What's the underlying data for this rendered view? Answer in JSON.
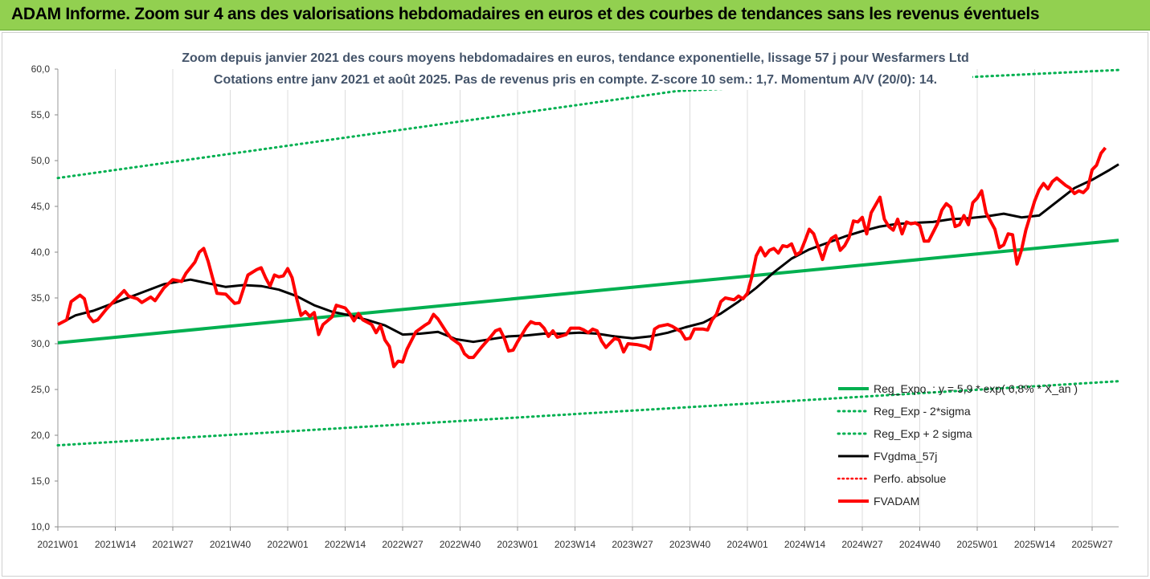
{
  "banner": {
    "title": "ADAM Informe. Zoom sur 4 ans des valorisations hebdomadaires en euros et des courbes de tendances sans les revenus éventuels"
  },
  "colors": {
    "banner_bg": "#92d050",
    "trend": "#00b050",
    "sigma": "#00b050",
    "smooth": "#000000",
    "price": "#ff0000",
    "perf": "#ff0000",
    "title": "#44546a"
  },
  "chart_data": {
    "type": "line",
    "title": "Zoom depuis janvier 2021 des cours moyens hebdomadaires en euros, tendance exponentielle, lissage 57 j pour Wesfarmers Ltd",
    "subtitle": "Cotations entre janv 2021 et août 2025. Pas de revenus pris en compte. Z-score 10 sem.: 1,7. Momentum A/V (20/0): 14.",
    "xlabel": "",
    "ylabel": "",
    "ylim": [
      10,
      60
    ],
    "yticks": [
      "10,0",
      "15,0",
      "20,0",
      "25,0",
      "30,0",
      "35,0",
      "40,0",
      "45,0",
      "50,0",
      "55,0",
      "60,0"
    ],
    "n_weeks": 241,
    "x_ticks": [
      {
        "i": 0,
        "label": "2021W01"
      },
      {
        "i": 13,
        "label": "2021W14"
      },
      {
        "i": 26,
        "label": "2021W27"
      },
      {
        "i": 39,
        "label": "2021W40"
      },
      {
        "i": 52,
        "label": "2022W01"
      },
      {
        "i": 65,
        "label": "2022W14"
      },
      {
        "i": 78,
        "label": "2022W27"
      },
      {
        "i": 91,
        "label": "2022W40"
      },
      {
        "i": 104,
        "label": "2023W01"
      },
      {
        "i": 117,
        "label": "2023W14"
      },
      {
        "i": 130,
        "label": "2023W27"
      },
      {
        "i": 143,
        "label": "2023W40"
      },
      {
        "i": 156,
        "label": "2024W01"
      },
      {
        "i": 169,
        "label": "2024W14"
      },
      {
        "i": 182,
        "label": "2024W27"
      },
      {
        "i": 195,
        "label": "2024W40"
      },
      {
        "i": 208,
        "label": "2025W01"
      },
      {
        "i": 221,
        "label": "2025W14"
      },
      {
        "i": 234,
        "label": "2025W27"
      }
    ],
    "grid": "vertical",
    "legend_position": "bottom-right",
    "series": [
      {
        "name": "Reg_Expo. : y = 5,9 * exp( 6,8% * X_an )",
        "style": "trend",
        "points": [
          [
            0,
            30.1
          ],
          [
            240,
            41.3
          ]
        ]
      },
      {
        "name": "Reg_Exp - 2*sigma",
        "style": "sigma",
        "points": [
          [
            0,
            18.9
          ],
          [
            240,
            25.9
          ]
        ]
      },
      {
        "name": "Reg_Exp + 2 sigma",
        "style": "sigma",
        "points": [
          [
            0,
            48.1
          ],
          [
            140,
            57.6
          ],
          [
            240,
            59.9
          ]
        ]
      },
      {
        "name": "FVgdma_57j",
        "style": "smooth",
        "points": [
          [
            0,
            32.1
          ],
          [
            4,
            33.1
          ],
          [
            8,
            33.6
          ],
          [
            13,
            34.5
          ],
          [
            18,
            35.4
          ],
          [
            24,
            36.5
          ],
          [
            30,
            37.0
          ],
          [
            34,
            36.6
          ],
          [
            38,
            36.2
          ],
          [
            42,
            36.4
          ],
          [
            46,
            36.3
          ],
          [
            50,
            35.9
          ],
          [
            54,
            35.2
          ],
          [
            58,
            34.2
          ],
          [
            62,
            33.5
          ],
          [
            66,
            33.1
          ],
          [
            70,
            32.6
          ],
          [
            74,
            32.0
          ],
          [
            78,
            31.0
          ],
          [
            82,
            31.1
          ],
          [
            86,
            31.3
          ],
          [
            90,
            30.5
          ],
          [
            94,
            30.2
          ],
          [
            98,
            30.5
          ],
          [
            102,
            30.8
          ],
          [
            106,
            30.9
          ],
          [
            110,
            31.1
          ],
          [
            114,
            31.1
          ],
          [
            118,
            31.2
          ],
          [
            122,
            31.1
          ],
          [
            126,
            30.8
          ],
          [
            130,
            30.6
          ],
          [
            134,
            30.8
          ],
          [
            138,
            31.2
          ],
          [
            142,
            31.8
          ],
          [
            146,
            32.3
          ],
          [
            150,
            33.3
          ],
          [
            154,
            34.6
          ],
          [
            158,
            36.1
          ],
          [
            162,
            37.8
          ],
          [
            166,
            39.3
          ],
          [
            170,
            40.3
          ],
          [
            174,
            41.0
          ],
          [
            178,
            41.7
          ],
          [
            182,
            42.3
          ],
          [
            186,
            42.8
          ],
          [
            190,
            43.1
          ],
          [
            194,
            43.2
          ],
          [
            198,
            43.3
          ],
          [
            202,
            43.6
          ],
          [
            206,
            43.7
          ],
          [
            210,
            43.9
          ],
          [
            214,
            44.2
          ],
          [
            218,
            43.8
          ],
          [
            222,
            44.0
          ],
          [
            226,
            45.5
          ],
          [
            230,
            47.0
          ],
          [
            234,
            47.9
          ],
          [
            238,
            49.0
          ],
          [
            240,
            49.6
          ]
        ]
      },
      {
        "name": "Perfo. absolue",
        "style": "perf",
        "points": []
      },
      {
        "name": "FVADAM",
        "style": "price",
        "points": [
          [
            0,
            32.1
          ],
          [
            2,
            32.6
          ],
          [
            3,
            34.6
          ],
          [
            5,
            35.3
          ],
          [
            6,
            34.9
          ],
          [
            7,
            33.0
          ],
          [
            8,
            32.4
          ],
          [
            9,
            32.6
          ],
          [
            11,
            33.8
          ],
          [
            13,
            34.8
          ],
          [
            15,
            35.8
          ],
          [
            16,
            35.2
          ],
          [
            18,
            34.9
          ],
          [
            19,
            34.5
          ],
          [
            21,
            35.1
          ],
          [
            22,
            34.7
          ],
          [
            24,
            36.1
          ],
          [
            26,
            37.0
          ],
          [
            28,
            36.8
          ],
          [
            29,
            37.7
          ],
          [
            31,
            38.9
          ],
          [
            32,
            40.0
          ],
          [
            33,
            40.4
          ],
          [
            34,
            39.0
          ],
          [
            35,
            37.2
          ],
          [
            36,
            35.5
          ],
          [
            38,
            35.4
          ],
          [
            40,
            34.4
          ],
          [
            41,
            34.5
          ],
          [
            43,
            37.5
          ],
          [
            45,
            38.1
          ],
          [
            46,
            38.3
          ],
          [
            47,
            37.2
          ],
          [
            48,
            36.3
          ],
          [
            49,
            37.5
          ],
          [
            50,
            37.3
          ],
          [
            51,
            37.4
          ],
          [
            52,
            38.2
          ],
          [
            53,
            37.2
          ],
          [
            54,
            35.0
          ],
          [
            55,
            33.1
          ],
          [
            56,
            33.5
          ],
          [
            57,
            33.0
          ],
          [
            58,
            33.4
          ],
          [
            59,
            31.0
          ],
          [
            60,
            32.1
          ],
          [
            62,
            32.9
          ],
          [
            63,
            34.2
          ],
          [
            65,
            33.9
          ],
          [
            66,
            33.3
          ],
          [
            67,
            32.5
          ],
          [
            68,
            33.3
          ],
          [
            69,
            32.6
          ],
          [
            71,
            32.1
          ],
          [
            72,
            31.2
          ],
          [
            73,
            32.0
          ],
          [
            74,
            30.4
          ],
          [
            75,
            29.7
          ],
          [
            76,
            27.5
          ],
          [
            77,
            28.1
          ],
          [
            78,
            28.0
          ],
          [
            79,
            29.4
          ],
          [
            81,
            31.3
          ],
          [
            83,
            32.0
          ],
          [
            84,
            32.3
          ],
          [
            85,
            33.2
          ],
          [
            86,
            32.7
          ],
          [
            88,
            31.2
          ],
          [
            89,
            30.6
          ],
          [
            91,
            29.9
          ],
          [
            92,
            28.9
          ],
          [
            93,
            28.5
          ],
          [
            94,
            28.5
          ],
          [
            96,
            29.7
          ],
          [
            98,
            30.8
          ],
          [
            99,
            31.4
          ],
          [
            100,
            31.6
          ],
          [
            101,
            30.6
          ],
          [
            102,
            29.2
          ],
          [
            103,
            29.3
          ],
          [
            104,
            30.2
          ],
          [
            106,
            31.8
          ],
          [
            107,
            32.4
          ],
          [
            108,
            32.2
          ],
          [
            109,
            32.2
          ],
          [
            110,
            31.7
          ],
          [
            111,
            30.8
          ],
          [
            112,
            31.4
          ],
          [
            113,
            30.7
          ],
          [
            115,
            31.0
          ],
          [
            116,
            31.7
          ],
          [
            118,
            31.7
          ],
          [
            119,
            31.5
          ],
          [
            120,
            31.2
          ],
          [
            121,
            31.6
          ],
          [
            122,
            31.4
          ],
          [
            123,
            30.3
          ],
          [
            124,
            29.6
          ],
          [
            126,
            30.6
          ],
          [
            127,
            30.4
          ],
          [
            128,
            29.1
          ],
          [
            129,
            30.0
          ],
          [
            131,
            29.9
          ],
          [
            133,
            29.7
          ],
          [
            134,
            29.4
          ],
          [
            135,
            31.6
          ],
          [
            136,
            31.9
          ],
          [
            138,
            32.1
          ],
          [
            139,
            31.9
          ],
          [
            141,
            31.3
          ],
          [
            142,
            30.5
          ],
          [
            143,
            30.6
          ],
          [
            144,
            31.6
          ],
          [
            146,
            31.6
          ],
          [
            147,
            31.5
          ],
          [
            148,
            32.6
          ],
          [
            149,
            33.2
          ],
          [
            150,
            34.6
          ],
          [
            151,
            35.0
          ],
          [
            153,
            34.8
          ],
          [
            154,
            35.2
          ],
          [
            155,
            34.9
          ],
          [
            156,
            35.5
          ],
          [
            157,
            37.3
          ],
          [
            158,
            39.6
          ],
          [
            159,
            40.5
          ],
          [
            160,
            39.6
          ],
          [
            161,
            40.2
          ],
          [
            162,
            40.4
          ],
          [
            163,
            39.9
          ],
          [
            164,
            40.7
          ],
          [
            165,
            40.6
          ],
          [
            166,
            40.9
          ],
          [
            167,
            39.7
          ],
          [
            168,
            40.0
          ],
          [
            169,
            41.2
          ],
          [
            170,
            42.5
          ],
          [
            171,
            42.0
          ],
          [
            172,
            40.6
          ],
          [
            173,
            39.2
          ],
          [
            174,
            40.7
          ],
          [
            175,
            41.5
          ],
          [
            176,
            41.8
          ],
          [
            177,
            40.2
          ],
          [
            178,
            40.7
          ],
          [
            179,
            41.6
          ],
          [
            180,
            43.4
          ],
          [
            181,
            43.3
          ],
          [
            182,
            43.8
          ],
          [
            183,
            42.0
          ],
          [
            184,
            44.3
          ],
          [
            186,
            46.0
          ],
          [
            187,
            43.6
          ],
          [
            188,
            42.8
          ],
          [
            189,
            42.4
          ],
          [
            190,
            43.6
          ],
          [
            191,
            42.0
          ],
          [
            192,
            43.3
          ],
          [
            193,
            43.1
          ],
          [
            194,
            43.2
          ],
          [
            195,
            42.9
          ],
          [
            196,
            41.2
          ],
          [
            197,
            41.2
          ],
          [
            199,
            43.1
          ],
          [
            200,
            44.6
          ],
          [
            201,
            45.3
          ],
          [
            202,
            44.9
          ],
          [
            203,
            42.8
          ],
          [
            204,
            43.0
          ],
          [
            205,
            44.0
          ],
          [
            206,
            43.0
          ],
          [
            207,
            45.4
          ],
          [
            208,
            45.9
          ],
          [
            209,
            46.7
          ],
          [
            210,
            44.3
          ],
          [
            212,
            42.5
          ],
          [
            213,
            40.5
          ],
          [
            214,
            40.8
          ],
          [
            215,
            42.0
          ],
          [
            216,
            41.9
          ],
          [
            217,
            38.7
          ],
          [
            218,
            40.2
          ],
          [
            219,
            42.4
          ],
          [
            221,
            45.6
          ],
          [
            222,
            46.8
          ],
          [
            223,
            47.5
          ],
          [
            224,
            46.9
          ],
          [
            225,
            47.7
          ],
          [
            226,
            48.1
          ],
          [
            228,
            47.3
          ],
          [
            229,
            47.0
          ],
          [
            230,
            46.4
          ],
          [
            231,
            46.7
          ],
          [
            232,
            46.5
          ],
          [
            233,
            47.0
          ],
          [
            234,
            49.0
          ],
          [
            235,
            49.5
          ],
          [
            236,
            50.8
          ],
          [
            237,
            51.4
          ]
        ]
      }
    ]
  }
}
